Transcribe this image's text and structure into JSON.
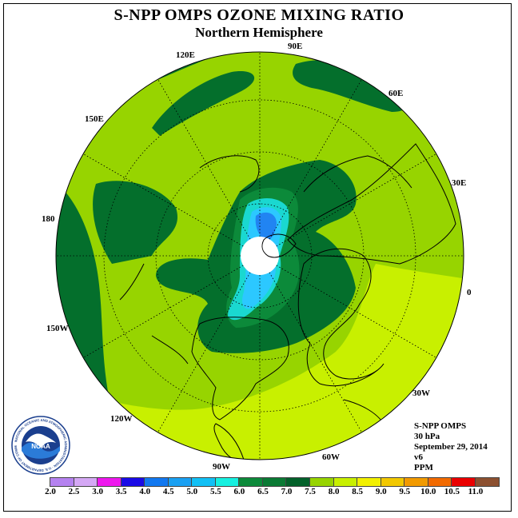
{
  "header": {
    "title": "S-NPP OMPS OZONE MIXING RATIO",
    "subtitle": "Northern Hemisphere"
  },
  "map": {
    "projection": "north polar stereographic",
    "longitude_labels": [
      "90E",
      "60E",
      "30E",
      "0",
      "30W",
      "60W",
      "90W",
      "120W",
      "150W",
      "180",
      "150E",
      "120E"
    ],
    "fill_colors": {
      "base": "#97d400",
      "dark_green": "#046f2c",
      "medium_green": "#0c8a3a",
      "pale_yellow_green": "#c8f000",
      "teal": "#1ad8d0",
      "cyan": "#2cc8ff",
      "blue": "#2184f2",
      "no_data_center": "#ffffff"
    }
  },
  "info": {
    "instrument": "S-NPP OMPS",
    "level": "30 hPa",
    "date": "September 29, 2014",
    "version": "v6",
    "units": "PPM"
  },
  "colorbar": {
    "colors": [
      "#b582f0",
      "#d5a8f5",
      "#ee18ee",
      "#1a0ae6",
      "#1278f0",
      "#1aa0f2",
      "#12c0f5",
      "#16f0e0",
      "#0c8a3a",
      "#0a7a34",
      "#03612a",
      "#97d400",
      "#c8f000",
      "#f2f000",
      "#f2c800",
      "#f29a00",
      "#f26a00",
      "#ea0000",
      "#8c5030"
    ],
    "ticks": [
      "2.0",
      "2.5",
      "3.0",
      "3.5",
      "4.0",
      "4.5",
      "5.0",
      "5.5",
      "6.0",
      "6.5",
      "7.0",
      "7.5",
      "8.0",
      "8.5",
      "9.0",
      "9.5",
      "10.0",
      "10.5",
      "11.0"
    ]
  },
  "logo": {
    "name": "NOAA",
    "ring_text": "NATIONAL OCEANIC AND ATMOSPHERIC ADMINISTRATION · U.S. DEPARTMENT OF COMMERCE"
  }
}
